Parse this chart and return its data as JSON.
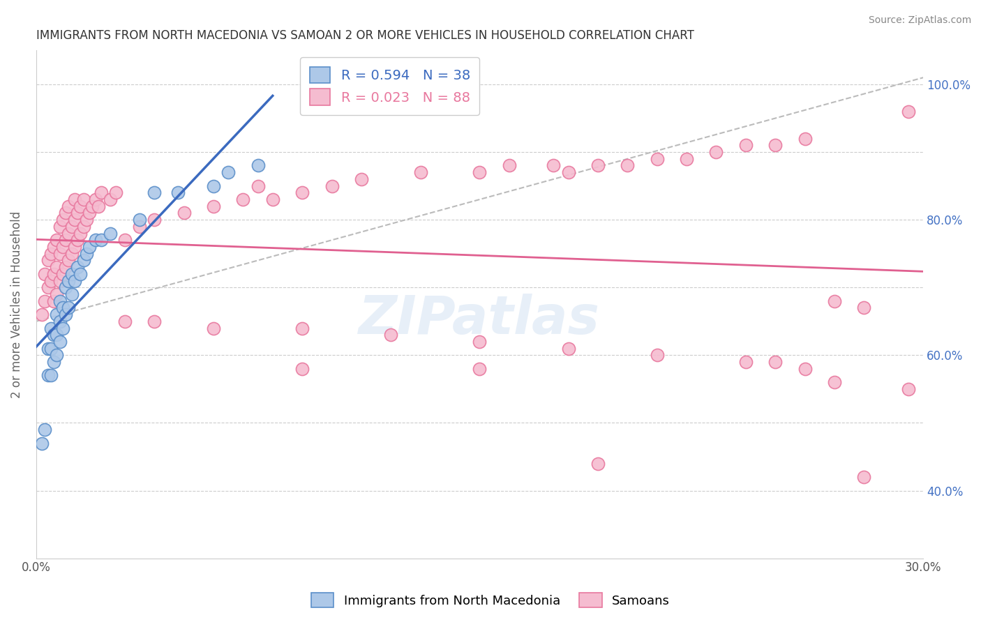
{
  "title": "IMMIGRANTS FROM NORTH MACEDONIA VS SAMOAN 2 OR MORE VEHICLES IN HOUSEHOLD CORRELATION CHART",
  "source": "Source: ZipAtlas.com",
  "ylabel": "2 or more Vehicles in Household",
  "xlim": [
    0.0,
    0.3
  ],
  "ylim": [
    0.3,
    1.05
  ],
  "xticks": [
    0.0,
    0.05,
    0.1,
    0.15,
    0.2,
    0.25,
    0.3
  ],
  "xtick_labels": [
    "0.0%",
    "",
    "",
    "",
    "",
    "",
    "30.0%"
  ],
  "yticks": [
    0.4,
    0.6,
    0.8,
    1.0
  ],
  "ytick_labels": [
    "40.0%",
    "60.0%",
    "80.0%",
    "100.0%"
  ],
  "blue_R": 0.594,
  "blue_N": 38,
  "pink_R": 0.023,
  "pink_N": 88,
  "blue_color": "#adc8e8",
  "blue_edge_color": "#5b8fc9",
  "pink_color": "#f5bcd0",
  "pink_edge_color": "#e8789e",
  "blue_trend_color": "#3b6abf",
  "pink_trend_color": "#e06090",
  "dash_color": "#bbbbbb",
  "watermark": "ZIPatlas",
  "blue_x": [
    0.002,
    0.003,
    0.004,
    0.004,
    0.005,
    0.005,
    0.005,
    0.006,
    0.006,
    0.007,
    0.007,
    0.007,
    0.008,
    0.008,
    0.008,
    0.009,
    0.009,
    0.01,
    0.01,
    0.011,
    0.011,
    0.012,
    0.012,
    0.013,
    0.014,
    0.015,
    0.016,
    0.017,
    0.018,
    0.02,
    0.022,
    0.025,
    0.035,
    0.04,
    0.048,
    0.06,
    0.065,
    0.075
  ],
  "blue_y": [
    0.47,
    0.49,
    0.57,
    0.61,
    0.57,
    0.61,
    0.64,
    0.59,
    0.63,
    0.6,
    0.63,
    0.66,
    0.62,
    0.65,
    0.68,
    0.64,
    0.67,
    0.66,
    0.7,
    0.67,
    0.71,
    0.69,
    0.72,
    0.71,
    0.73,
    0.72,
    0.74,
    0.75,
    0.76,
    0.77,
    0.77,
    0.78,
    0.8,
    0.84,
    0.84,
    0.85,
    0.87,
    0.88
  ],
  "pink_x": [
    0.002,
    0.003,
    0.003,
    0.004,
    0.004,
    0.005,
    0.005,
    0.006,
    0.006,
    0.006,
    0.007,
    0.007,
    0.007,
    0.008,
    0.008,
    0.008,
    0.009,
    0.009,
    0.009,
    0.01,
    0.01,
    0.01,
    0.011,
    0.011,
    0.011,
    0.012,
    0.012,
    0.013,
    0.013,
    0.013,
    0.014,
    0.014,
    0.015,
    0.015,
    0.016,
    0.016,
    0.017,
    0.018,
    0.019,
    0.02,
    0.021,
    0.022,
    0.025,
    0.027,
    0.03,
    0.035,
    0.04,
    0.05,
    0.06,
    0.07,
    0.075,
    0.08,
    0.09,
    0.1,
    0.11,
    0.13,
    0.15,
    0.16,
    0.175,
    0.18,
    0.19,
    0.2,
    0.21,
    0.22,
    0.23,
    0.24,
    0.25,
    0.26,
    0.27,
    0.28,
    0.03,
    0.04,
    0.06,
    0.09,
    0.12,
    0.15,
    0.18,
    0.21,
    0.24,
    0.26,
    0.15,
    0.19,
    0.09,
    0.25,
    0.27,
    0.28,
    0.295,
    0.295
  ],
  "pink_y": [
    0.66,
    0.68,
    0.72,
    0.7,
    0.74,
    0.71,
    0.75,
    0.68,
    0.72,
    0.76,
    0.69,
    0.73,
    0.77,
    0.71,
    0.75,
    0.79,
    0.72,
    0.76,
    0.8,
    0.73,
    0.77,
    0.81,
    0.74,
    0.78,
    0.82,
    0.75,
    0.79,
    0.76,
    0.8,
    0.83,
    0.77,
    0.81,
    0.78,
    0.82,
    0.79,
    0.83,
    0.8,
    0.81,
    0.82,
    0.83,
    0.82,
    0.84,
    0.83,
    0.84,
    0.77,
    0.79,
    0.8,
    0.81,
    0.82,
    0.83,
    0.85,
    0.83,
    0.84,
    0.85,
    0.86,
    0.87,
    0.87,
    0.88,
    0.88,
    0.87,
    0.88,
    0.88,
    0.89,
    0.89,
    0.9,
    0.91,
    0.91,
    0.92,
    0.68,
    0.67,
    0.65,
    0.65,
    0.64,
    0.64,
    0.63,
    0.62,
    0.61,
    0.6,
    0.59,
    0.58,
    0.58,
    0.44,
    0.58,
    0.59,
    0.56,
    0.42,
    0.55,
    0.96
  ]
}
